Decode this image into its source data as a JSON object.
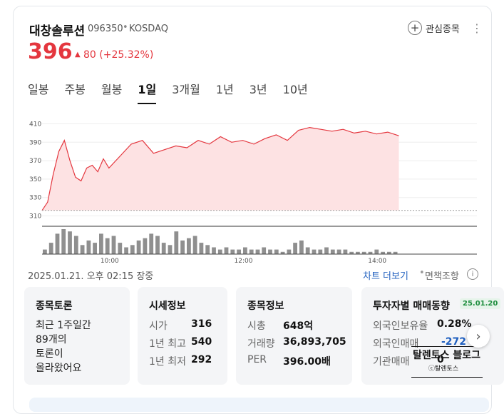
{
  "stock": {
    "name": "대창솔루션",
    "code": "096350",
    "separator": "•",
    "market": "KOSDAQ",
    "price": "396",
    "change_arrow": "▲",
    "change": "80 (+25.32%)",
    "favorite_label": "관심종목",
    "favorite_icon": "plus-icon",
    "more_icon": "more-vertical-icon"
  },
  "tabs": [
    "일봉",
    "주봉",
    "월봉",
    "1일",
    "3개월",
    "1년",
    "3년",
    "10년"
  ],
  "active_tab": "1일",
  "chart_data": {
    "type": "area",
    "y_ticks": [
      410,
      390,
      370,
      350,
      330,
      310
    ],
    "x_ticks": [
      "10:00",
      "12:00",
      "14:00"
    ],
    "ylim": [
      305,
      415
    ],
    "xlim": [
      "09:00",
      "15:30"
    ],
    "baseline": 316,
    "series": [
      {
        "x": [
          "09:00",
          "09:05",
          "09:10",
          "09:15",
          "09:20",
          "09:25",
          "09:30",
          "09:35",
          "09:40",
          "09:45",
          "09:50",
          "09:55",
          "10:00",
          "10:10",
          "10:20",
          "10:30",
          "10:40",
          "10:50",
          "11:00",
          "11:10",
          "11:20",
          "11:30",
          "11:40",
          "11:50",
          "12:00",
          "12:10",
          "12:20",
          "12:30",
          "12:40",
          "12:50",
          "13:00",
          "13:10",
          "13:20",
          "13:30",
          "13:40",
          "13:50",
          "14:00",
          "14:10",
          "14:20"
        ],
        "values": [
          316,
          325,
          355,
          380,
          392,
          370,
          352,
          348,
          362,
          365,
          358,
          372,
          362,
          375,
          388,
          392,
          378,
          382,
          386,
          384,
          392,
          388,
          396,
          390,
          392,
          388,
          394,
          398,
          392,
          403,
          406,
          404,
          402,
          404,
          400,
          402,
          399,
          401,
          397
        ]
      }
    ],
    "volume": [
      2,
      5,
      9,
      11,
      10,
      8,
      4,
      6,
      5,
      9,
      7,
      8,
      5,
      3,
      4,
      6,
      7,
      9,
      8,
      5,
      4,
      10,
      6,
      7,
      8,
      5,
      4,
      3,
      2,
      3,
      2,
      2,
      3,
      2,
      2,
      3,
      2,
      2,
      1,
      2,
      5,
      6,
      3,
      2,
      2,
      3,
      2,
      2,
      2,
      1,
      1,
      1,
      1,
      2,
      1,
      1,
      1
    ]
  },
  "timestamp": "2025.01.21. 오후 02:15 장중",
  "chart_link": "차트 더보기",
  "link_sep": "•",
  "disclaimer": "면책조항",
  "info_icon": "info-icon",
  "discussion": {
    "title": "종목토론",
    "text": "최근 1주일간\n89개의\n토론이\n올라왔어요"
  },
  "quote": {
    "title": "시세정보",
    "rows": [
      {
        "label": "시가",
        "value": "316"
      },
      {
        "label": "1년 최고",
        "value": "540"
      },
      {
        "label": "1년 최저",
        "value": "292"
      }
    ]
  },
  "info": {
    "title": "종목정보",
    "rows": [
      {
        "label": "시총",
        "value": "648억"
      },
      {
        "label": "거래량",
        "value": "36,893,705"
      },
      {
        "label": "PER",
        "value": "396.00배"
      }
    ]
  },
  "investor": {
    "title": "투자자별 매매동향",
    "badge": "25.01.20",
    "rows": [
      {
        "label": "외국인보유율",
        "value": "0.28%"
      },
      {
        "label": "외국인매매",
        "value": "-272"
      },
      {
        "label": "기관매매",
        "value": "0"
      }
    ],
    "next_icon": "chevron-right-icon"
  },
  "watermark": {
    "line1": "탈렌토스 블로그",
    "line2": "ⓒ탈렌토스"
  },
  "colors": {
    "up": "#e4363e",
    "link": "#1f5fbf",
    "area_fill": "#fde2e3",
    "badge_bg": "#e6f4ea",
    "badge_text": "#1e8e3e",
    "negative_blue": "#1f5fbf"
  }
}
